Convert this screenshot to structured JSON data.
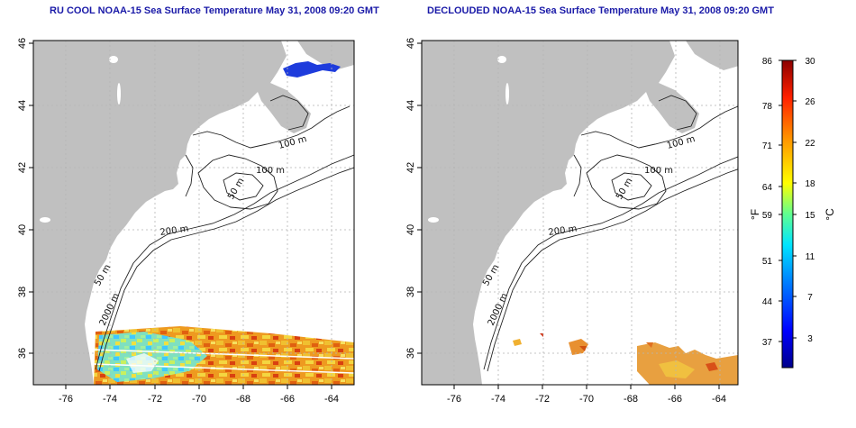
{
  "left_map": {
    "title": "RU COOL NOAA-15 Sea Surface Temperature May 31, 2008 09:20 GMT",
    "lon_ticks": [
      "-76",
      "-74",
      "-72",
      "-70",
      "-68",
      "-66",
      "-64"
    ],
    "lat_ticks": [
      "36",
      "38",
      "40",
      "42",
      "44",
      "46"
    ],
    "contour_labels": [
      "100 m",
      "100 m",
      "50 m",
      "200 m",
      "50 m",
      "2000 m"
    ]
  },
  "right_map": {
    "title": "DECLOUDED NOAA-15 Sea Surface Temperature May 31, 2008 09:20 GMT",
    "lon_ticks": [
      "-76",
      "-74",
      "-72",
      "-70",
      "-68",
      "-66",
      "-64"
    ],
    "lat_ticks": [
      "36",
      "38",
      "40",
      "42",
      "44",
      "46"
    ],
    "contour_labels": [
      "100 m",
      "100 m",
      "50 m",
      "200 m",
      "50 m",
      "2000 m"
    ]
  },
  "colorbar": {
    "fahrenheit_label": "°F",
    "celsius_label": "°C",
    "fahrenheit_ticks": [
      "86",
      "78",
      "71",
      "64",
      "59",
      "51",
      "44",
      "37"
    ],
    "celsius_ticks": [
      "30",
      "26",
      "22",
      "18",
      "15",
      "11",
      "7",
      "3"
    ],
    "colors": [
      "#00008b",
      "#0000ff",
      "#0080ff",
      "#00ffff",
      "#80ff80",
      "#ffff00",
      "#ff8000",
      "#ff0000",
      "#8b0000"
    ]
  },
  "map_colors": {
    "land": "#c0c0c0",
    "ocean": "#ffffff",
    "grid": "#b4b4b4"
  }
}
